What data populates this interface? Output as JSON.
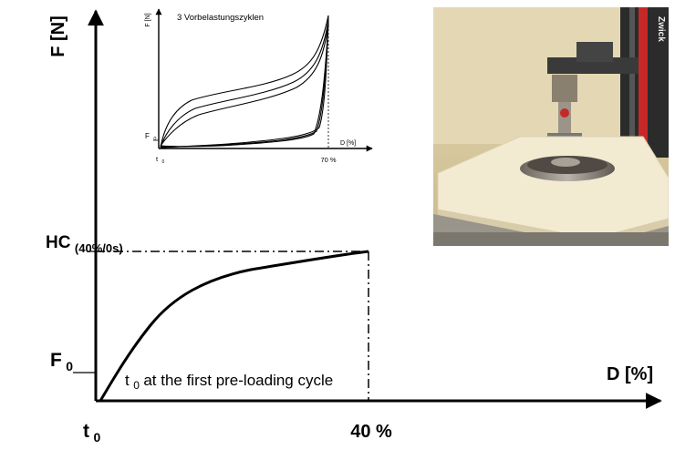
{
  "main_diagram": {
    "y_axis_label": "F [N]",
    "x_axis_label": "D [%]",
    "hc_label": "HC",
    "hc_subscript": "(40%/0s)",
    "f0_main": "F",
    "f0_sub": "0",
    "t0_main": "t",
    "t0_sub": "0",
    "x_tick_40": "40 %",
    "annotation_t": "t",
    "annotation_sub": "0",
    "annotation_rest": " at the first pre-loading cycle"
  },
  "inset_chart": {
    "title": "3 Vorbelastungszyklen",
    "y_axis_label": "F [N]",
    "x_axis_label": "D [%]",
    "f0_main": "F",
    "f0_sub": "0",
    "t0_main": "t",
    "t0_sub": "0",
    "x_tick_70": "70 %"
  },
  "photo": {
    "machine_brand": "Zwick"
  },
  "colors": {
    "axis": "#000000",
    "photo_background": "#d8c9a0",
    "foam_block": "#f3ead2",
    "machine_column": "#2a2a2a",
    "machine_red_stripe": "#c62828"
  }
}
